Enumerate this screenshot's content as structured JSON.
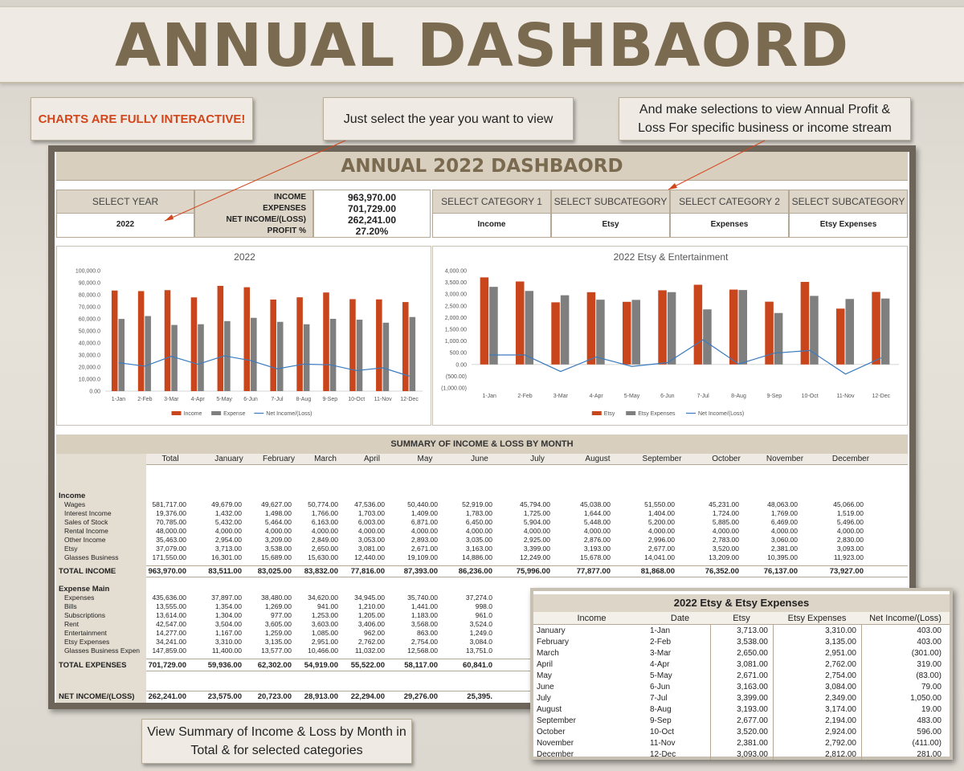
{
  "banner_title": "ANNUAL DASHBAORD",
  "callouts": {
    "interactive": "CHARTS ARE FULLY INTERACTIVE!",
    "year": "Just select the year you want to view",
    "select": "And make selections to view Annual Profit & Loss For specific business or income stream",
    "summary": "View Summary of Income & Loss by Month in Total & for selected categories"
  },
  "dashboard": {
    "title": "ANNUAL 2022 DASHBAORD",
    "select_year_label": "SELECT YEAR",
    "select_year_value": "2022",
    "kpis": [
      {
        "label": "INCOME",
        "value": "963,970.00"
      },
      {
        "label": "EXPENSES",
        "value": "701,729.00"
      },
      {
        "label": "NET INCOME/(LOSS)",
        "value": "262,241.00"
      },
      {
        "label": "PROFIT %",
        "value": "27.20%"
      }
    ],
    "selectors": [
      {
        "label": "SELECT CATEGORY 1",
        "value": "Income"
      },
      {
        "label": "SELECT SUBCATEGORY",
        "value": "Etsy"
      },
      {
        "label": "SELECT CATEGORY 2",
        "value": "Expenses"
      },
      {
        "label": "SELECT SUBCATEGORY",
        "value": "Etsy Expenses"
      }
    ]
  },
  "chart_data": [
    {
      "type": "bar",
      "title": "2022",
      "categories": [
        "1-Jan",
        "2-Feb",
        "3-Mar",
        "4-Apr",
        "5-May",
        "6-Jun",
        "7-Jul",
        "8-Aug",
        "9-Sep",
        "10-Oct",
        "11-Nov",
        "12-Dec"
      ],
      "series": [
        {
          "name": "Income",
          "type": "bar",
          "color": "#c9461c",
          "values": [
            83511,
            83025,
            83832,
            77816,
            87393,
            86236,
            75996,
            77877,
            81868,
            76352,
            76137,
            73927
          ]
        },
        {
          "name": "Expense",
          "type": "bar",
          "color": "#7f7f7f",
          "values": [
            59936,
            62302,
            54919,
            55522,
            58117,
            60841,
            57500,
            55500,
            60000,
            59300,
            56800,
            61500
          ]
        },
        {
          "name": "Net Income/(Loss)",
          "type": "line",
          "color": "#3a7bbf",
          "values": [
            23575,
            20723,
            28913,
            22294,
            29276,
            25395,
            18496,
            22377,
            21868,
            17052,
            19337,
            12427
          ]
        }
      ],
      "ylim": [
        0,
        100000
      ],
      "yticks": [
        "100,000.0",
        "90,000.0",
        "80,000.0",
        "70,000.0",
        "60,000.0",
        "50,000.0",
        "40,000.0",
        "30,000.0",
        "20,000.0",
        "10,000.0",
        "0.00"
      ],
      "legend": "bottom"
    },
    {
      "type": "bar",
      "title": "2022 Etsy & Entertainment",
      "categories": [
        "1-Jan",
        "2-Feb",
        "3-Mar",
        "4-Apr",
        "5-May",
        "6-Jun",
        "7-Jul",
        "8-Aug",
        "9-Sep",
        "10-Oct",
        "11-Nov",
        "12-Dec"
      ],
      "series": [
        {
          "name": "Etsy",
          "type": "bar",
          "color": "#c9461c",
          "values": [
            3713,
            3538,
            2650,
            3081,
            2671,
            3163,
            3399,
            3193,
            2677,
            3520,
            2381,
            3093
          ]
        },
        {
          "name": "Etsy Expenses",
          "type": "bar",
          "color": "#7f7f7f",
          "values": [
            3310,
            3135,
            2951,
            2762,
            2754,
            3084,
            2349,
            3174,
            2194,
            2924,
            2792,
            2812
          ]
        },
        {
          "name": "Net Income/(Loss)",
          "type": "line",
          "color": "#3a7bbf",
          "values": [
            403,
            403,
            -301,
            319,
            -83,
            79,
            1050,
            19,
            483,
            596,
            -411,
            281
          ]
        }
      ],
      "ylim": [
        -1000,
        4000
      ],
      "yticks": [
        "4,000.00",
        "3,500.00",
        "3,000.00",
        "2,500.00",
        "2,000.00",
        "1,500.00",
        "1,000.00",
        "500.00",
        "0.00",
        "(500.00)",
        "(1,000.00)"
      ],
      "legend": "bottom"
    }
  ],
  "summary": {
    "title": "SUMMARY OF INCOME & LOSS BY MONTH",
    "columns": [
      "Total",
      "January",
      "February",
      "March",
      "April",
      "May",
      "June",
      "July",
      "August",
      "September",
      "October",
      "November",
      "December"
    ],
    "income_label": "Income",
    "income_rows": [
      {
        "label": "Wages",
        "values": [
          "581,717.00",
          "49,679.00",
          "49,627.00",
          "50,774.00",
          "47,536.00",
          "50,440.00",
          "52,919.00",
          "45,794.00",
          "45,038.00",
          "51,550.00",
          "45,231.00",
          "48,063.00",
          "45,066.00"
        ]
      },
      {
        "label": "Interest Income",
        "values": [
          "19,376.00",
          "1,432.00",
          "1,498.00",
          "1,766.00",
          "1,703.00",
          "1,409.00",
          "1,783.00",
          "1,725.00",
          "1,644.00",
          "1,404.00",
          "1,724.00",
          "1,769.00",
          "1,519.00"
        ]
      },
      {
        "label": "Sales of Stock",
        "values": [
          "70,785.00",
          "5,432.00",
          "5,464.00",
          "6,163.00",
          "6,003.00",
          "6,871.00",
          "6,450.00",
          "5,904.00",
          "5,448.00",
          "5,200.00",
          "5,885.00",
          "6,469.00",
          "5,496.00"
        ]
      },
      {
        "label": "Rental Income",
        "values": [
          "48,000.00",
          "4,000.00",
          "4,000.00",
          "4,000.00",
          "4,000.00",
          "4,000.00",
          "4,000.00",
          "4,000.00",
          "4,000.00",
          "4,000.00",
          "4,000.00",
          "4,000.00",
          "4,000.00"
        ]
      },
      {
        "label": "Other Income",
        "values": [
          "35,463.00",
          "2,954.00",
          "3,209.00",
          "2,849.00",
          "3,053.00",
          "2,893.00",
          "3,035.00",
          "2,925.00",
          "2,876.00",
          "2,996.00",
          "2,783.00",
          "3,060.00",
          "2,830.00"
        ]
      },
      {
        "label": "Etsy",
        "values": [
          "37,079.00",
          "3,713.00",
          "3,538.00",
          "2,650.00",
          "3,081.00",
          "2,671.00",
          "3,163.00",
          "3,399.00",
          "3,193.00",
          "2,677.00",
          "3,520.00",
          "2,381.00",
          "3,093.00"
        ]
      },
      {
        "label": "Glasses Business",
        "values": [
          "171,550.00",
          "16,301.00",
          "15,689.00",
          "15,630.00",
          "12,440.00",
          "19,109.00",
          "14,886.00",
          "12,249.00",
          "15,678.00",
          "14,041.00",
          "13,209.00",
          "10,395.00",
          "11,923.00"
        ]
      }
    ],
    "total_income": {
      "label": "TOTAL INCOME",
      "values": [
        "963,970.00",
        "83,511.00",
        "83,025.00",
        "83,832.00",
        "77,816.00",
        "87,393.00",
        "86,236.00",
        "75,996.00",
        "77,877.00",
        "81,868.00",
        "76,352.00",
        "76,137.00",
        "73,927.00"
      ]
    },
    "expense_label": "Expense Main",
    "expense_rows": [
      {
        "label": "Expenses",
        "values": [
          "435,636.00",
          "37,897.00",
          "38,480.00",
          "34,620.00",
          "34,945.00",
          "35,740.00",
          "37,274.0"
        ]
      },
      {
        "label": "Bills",
        "values": [
          "13,555.00",
          "1,354.00",
          "1,269.00",
          "941.00",
          "1,210.00",
          "1,441.00",
          "998.0"
        ]
      },
      {
        "label": "Subscriptions",
        "values": [
          "13,614.00",
          "1,304.00",
          "977.00",
          "1,253.00",
          "1,205.00",
          "1,183.00",
          "961.0"
        ]
      },
      {
        "label": "Rent",
        "values": [
          "42,547.00",
          "3,504.00",
          "3,605.00",
          "3,603.00",
          "3,406.00",
          "3,568.00",
          "3,524.0"
        ]
      },
      {
        "label": "Entertainment",
        "values": [
          "14,277.00",
          "1,167.00",
          "1,259.00",
          "1,085.00",
          "962.00",
          "863.00",
          "1,249.0"
        ]
      },
      {
        "label": "Etsy Expenses",
        "values": [
          "34,241.00",
          "3,310.00",
          "3,135.00",
          "2,951.00",
          "2,762.00",
          "2,754.00",
          "3,084.0"
        ]
      },
      {
        "label": "Glasses Business Expen",
        "values": [
          "147,859.00",
          "11,400.00",
          "13,577.00",
          "10,466.00",
          "11,032.00",
          "12,568.00",
          "13,751.0"
        ]
      }
    ],
    "total_expenses": {
      "label": "TOTAL EXPENSES",
      "values": [
        "701,729.00",
        "59,936.00",
        "62,302.00",
        "54,919.00",
        "55,522.00",
        "58,117.00",
        "60,841.0"
      ]
    },
    "net_income": {
      "label": "NET INCOME/(LOSS)",
      "values": [
        "262,241.00",
        "23,575.00",
        "20,723.00",
        "28,913.00",
        "22,294.00",
        "29,276.00",
        "25,395."
      ]
    }
  },
  "overlay": {
    "title": "2022 Etsy & Etsy Expenses",
    "headers": [
      "Income",
      "Date",
      "Etsy",
      "Etsy Expenses",
      "Net Income/(Loss)"
    ],
    "rows": [
      [
        "January",
        "1-Jan",
        "3,713.00",
        "3,310.00",
        "403.00"
      ],
      [
        "February",
        "2-Feb",
        "3,538.00",
        "3,135.00",
        "403.00"
      ],
      [
        "March",
        "3-Mar",
        "2,650.00",
        "2,951.00",
        "(301.00)"
      ],
      [
        "April",
        "4-Apr",
        "3,081.00",
        "2,762.00",
        "319.00"
      ],
      [
        "May",
        "5-May",
        "2,671.00",
        "2,754.00",
        "(83.00)"
      ],
      [
        "June",
        "6-Jun",
        "3,163.00",
        "3,084.00",
        "79.00"
      ],
      [
        "July",
        "7-Jul",
        "3,399.00",
        "2,349.00",
        "1,050.00"
      ],
      [
        "August",
        "8-Aug",
        "3,193.00",
        "3,174.00",
        "19.00"
      ],
      [
        "September",
        "9-Sep",
        "2,677.00",
        "2,194.00",
        "483.00"
      ],
      [
        "October",
        "10-Oct",
        "3,520.00",
        "2,924.00",
        "596.00"
      ],
      [
        "November",
        "11-Nov",
        "2,381.00",
        "2,792.00",
        "(411.00)"
      ],
      [
        "December",
        "12-Dec",
        "3,093.00",
        "2,812.00",
        "281.00"
      ]
    ]
  }
}
